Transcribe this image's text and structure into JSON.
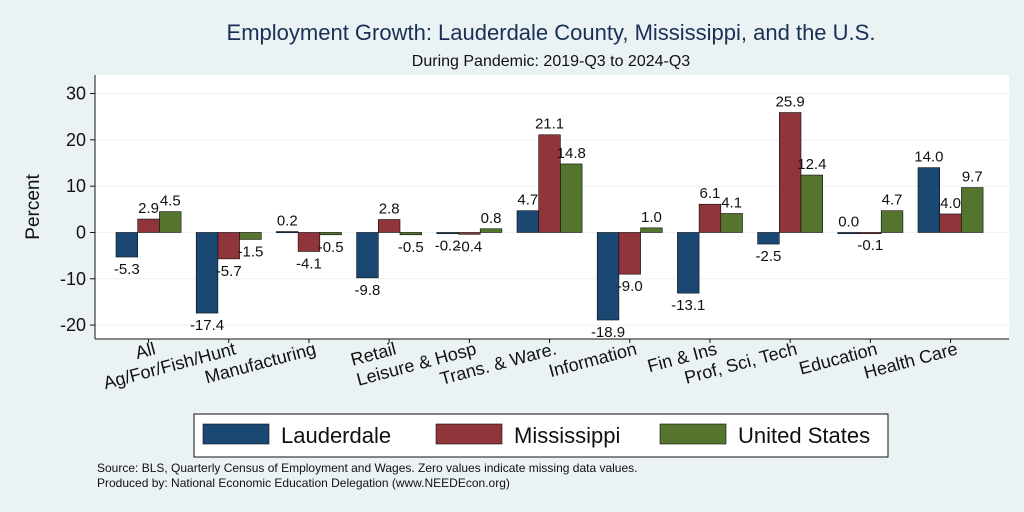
{
  "chart_data": {
    "type": "bar",
    "title": "Employment Growth: Lauderdale County, Mississippi, and the U.S.",
    "subtitle": "During Pandemic: 2019-Q3 to 2024-Q3",
    "ylabel": "Percent",
    "xlabel": "",
    "ylim": [
      -23,
      34
    ],
    "yticks": [
      -20,
      -10,
      0,
      10,
      20,
      30
    ],
    "ytick_labels": [
      "-20",
      "-10",
      "0",
      "10",
      "20",
      "30"
    ],
    "grid": true,
    "legend_position": "bottom",
    "categories": [
      "All",
      "Ag/For/Fish/Hunt",
      "Manufacturing",
      "Retail",
      "Leisure & Hosp",
      "Trans. & Ware.",
      "Information",
      "Fin & Ins",
      "Prof, Sci, Tech",
      "Education",
      "Health Care"
    ],
    "series": [
      {
        "name": "Lauderdale",
        "color": "#1a4872",
        "values": [
          -5.3,
          -17.4,
          0.2,
          -9.8,
          -0.2,
          4.7,
          -18.9,
          -13.1,
          -2.5,
          0.0,
          14.0
        ],
        "labels": [
          "-5.3",
          "-17.4",
          "0.2",
          "-9.8",
          "-0.2",
          "4.7",
          "-18.9",
          "-13.1",
          "-2.5",
          "0.0",
          "14.0"
        ]
      },
      {
        "name": "Mississippi",
        "color": "#90353b",
        "values": [
          2.9,
          -5.7,
          -4.1,
          2.8,
          -0.4,
          21.1,
          -9.0,
          6.1,
          25.9,
          -0.1,
          4.0
        ],
        "labels": [
          "2.9",
          "-5.7",
          "-4.1",
          "2.8",
          "-0.4",
          "21.1",
          "-9.0",
          "6.1",
          "25.9",
          "-0.1",
          "4.0"
        ]
      },
      {
        "name": "United States",
        "color": "#55752f",
        "values": [
          4.5,
          -1.5,
          -0.5,
          -0.5,
          0.8,
          14.8,
          1.0,
          4.1,
          12.4,
          4.7,
          9.7
        ],
        "labels": [
          "4.5",
          "-1.5",
          "-0.5",
          "-0.5",
          "0.8",
          "14.8",
          "1.0",
          "4.1",
          "12.4",
          "4.7",
          "9.7"
        ]
      }
    ]
  },
  "footer": {
    "source": "Source: BLS, Quarterly Census of Employment and Wages. Zero values indicate missing data values.",
    "produced": "Produced by: National Economic Education Delegation (www.NEEDEcon.org)"
  }
}
